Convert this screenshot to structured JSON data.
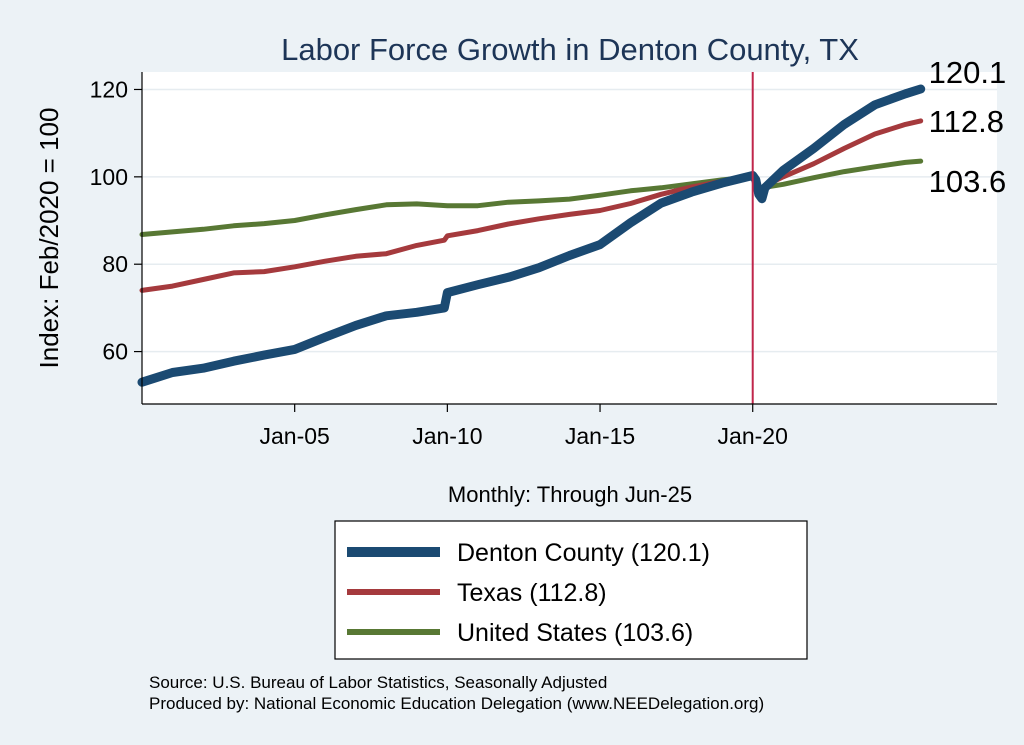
{
  "chart_data": {
    "type": "line",
    "title": "Labor Force Growth in Denton  County, TX",
    "ylabel": "Index: Feb/2020 = 100",
    "xlabel": "Monthly: Through Jun-25",
    "xlim": [
      2000.0,
      2028.0
    ],
    "ylim": [
      48,
      124
    ],
    "yticks": [
      60,
      80,
      100,
      120
    ],
    "xticks": [
      {
        "value": 2005.0,
        "label": "Jan-05"
      },
      {
        "value": 2010.0,
        "label": "Jan-10"
      },
      {
        "value": 2015.0,
        "label": "Jan-15"
      },
      {
        "value": 2020.0,
        "label": "Jan-20"
      }
    ],
    "vline": {
      "x": 2020.0,
      "color": "#c0264b"
    },
    "gridlines": true,
    "series": [
      {
        "name": "Denton  County (120.1)",
        "color": "#1b4a72",
        "width": 9,
        "end_label": "120.1",
        "points": [
          [
            2000.0,
            53.0
          ],
          [
            2001.0,
            55.2
          ],
          [
            2002.0,
            56.2
          ],
          [
            2003.0,
            57.8
          ],
          [
            2004.0,
            59.2
          ],
          [
            2005.0,
            60.5
          ],
          [
            2006.0,
            63.3
          ],
          [
            2007.0,
            66.0
          ],
          [
            2008.0,
            68.2
          ],
          [
            2009.0,
            69.0
          ],
          [
            2009.9,
            70.0
          ],
          [
            2010.0,
            73.5
          ],
          [
            2011.0,
            75.3
          ],
          [
            2012.0,
            77.0
          ],
          [
            2013.0,
            79.2
          ],
          [
            2014.0,
            82.0
          ],
          [
            2015.0,
            84.5
          ],
          [
            2016.0,
            89.5
          ],
          [
            2017.0,
            94.0
          ],
          [
            2018.0,
            96.5
          ],
          [
            2019.0,
            98.6
          ],
          [
            2020.0,
            100.3
          ],
          [
            2020.1,
            99.3
          ],
          [
            2020.2,
            96.0
          ],
          [
            2020.3,
            95.0
          ],
          [
            2020.4,
            97.5
          ],
          [
            2021.0,
            101.5
          ],
          [
            2022.0,
            106.5
          ],
          [
            2023.0,
            112.0
          ],
          [
            2024.0,
            116.5
          ],
          [
            2025.0,
            119.0
          ],
          [
            2025.5,
            120.1
          ]
        ]
      },
      {
        "name": "Texas (112.8)",
        "color": "#a53a3d",
        "width": 5,
        "end_label": "112.8",
        "points": [
          [
            2000.0,
            74.0
          ],
          [
            2001.0,
            75.0
          ],
          [
            2002.0,
            76.5
          ],
          [
            2003.0,
            78.0
          ],
          [
            2004.0,
            78.3
          ],
          [
            2005.0,
            79.4
          ],
          [
            2006.0,
            80.7
          ],
          [
            2007.0,
            81.8
          ],
          [
            2008.0,
            82.4
          ],
          [
            2009.0,
            84.3
          ],
          [
            2009.9,
            85.5
          ],
          [
            2010.0,
            86.5
          ],
          [
            2011.0,
            87.7
          ],
          [
            2012.0,
            89.2
          ],
          [
            2013.0,
            90.4
          ],
          [
            2014.0,
            91.4
          ],
          [
            2015.0,
            92.3
          ],
          [
            2016.0,
            93.9
          ],
          [
            2017.0,
            96.0
          ],
          [
            2018.0,
            97.7
          ],
          [
            2019.0,
            99.0
          ],
          [
            2020.0,
            100.0
          ],
          [
            2020.2,
            96.5
          ],
          [
            2020.4,
            98.0
          ],
          [
            2021.0,
            100.0
          ],
          [
            2022.0,
            103.0
          ],
          [
            2023.0,
            106.5
          ],
          [
            2024.0,
            109.8
          ],
          [
            2025.0,
            112.0
          ],
          [
            2025.5,
            112.8
          ]
        ]
      },
      {
        "name": "United States (103.6)",
        "color": "#587834",
        "width": 5,
        "end_label": "103.6",
        "points": [
          [
            2000.0,
            86.8
          ],
          [
            2001.0,
            87.4
          ],
          [
            2002.0,
            88.0
          ],
          [
            2003.0,
            88.8
          ],
          [
            2004.0,
            89.3
          ],
          [
            2005.0,
            90.0
          ],
          [
            2006.0,
            91.3
          ],
          [
            2007.0,
            92.5
          ],
          [
            2008.0,
            93.6
          ],
          [
            2009.0,
            93.8
          ],
          [
            2010.0,
            93.4
          ],
          [
            2011.0,
            93.4
          ],
          [
            2012.0,
            94.2
          ],
          [
            2013.0,
            94.5
          ],
          [
            2014.0,
            94.9
          ],
          [
            2015.0,
            95.8
          ],
          [
            2016.0,
            96.8
          ],
          [
            2017.0,
            97.5
          ],
          [
            2018.0,
            98.4
          ],
          [
            2019.0,
            99.3
          ],
          [
            2020.0,
            100.0
          ],
          [
            2020.2,
            96.7
          ],
          [
            2020.4,
            97.6
          ],
          [
            2021.0,
            98.3
          ],
          [
            2022.0,
            99.8
          ],
          [
            2023.0,
            101.2
          ],
          [
            2024.0,
            102.3
          ],
          [
            2025.0,
            103.3
          ],
          [
            2025.5,
            103.6
          ]
        ]
      }
    ]
  },
  "source_line": "Source: U.S. Bureau of Labor Statistics, Seasonally Adjusted",
  "produced_line": "Produced by: National Economic Education Delegation (www.NEEDelegation.org)"
}
